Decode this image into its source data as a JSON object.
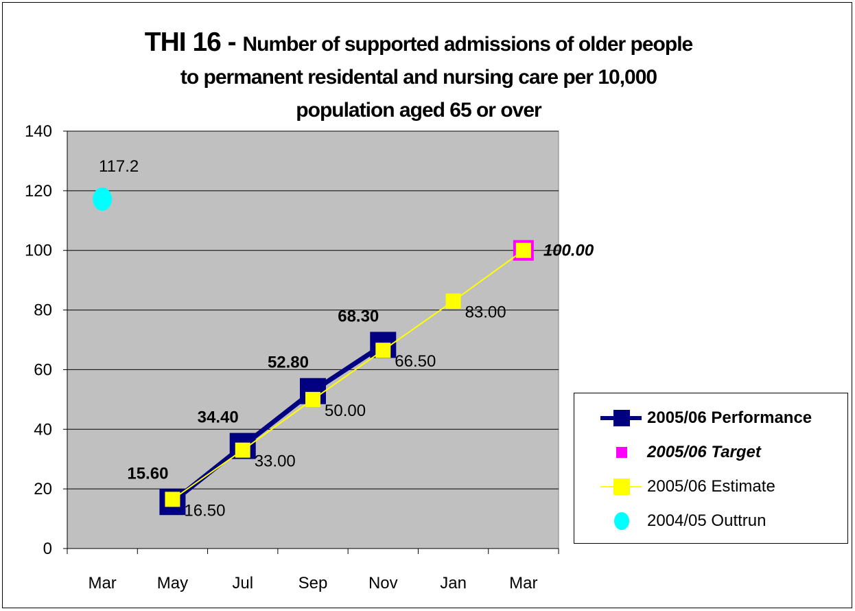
{
  "chart_data": {
    "type": "line",
    "title_line1_prefix": "THI 16 - ",
    "title_line1_rest": "Number of supported admissions of older people",
    "title_line2": "to permanent residental and nursing care per 10,000",
    "title_line3": "population aged 65 or over",
    "categories": [
      "Mar",
      "May",
      "Jul",
      "Sep",
      "Nov",
      "Jan",
      "Mar"
    ],
    "ylim": [
      0,
      140
    ],
    "yticks": [
      0,
      20,
      40,
      60,
      80,
      100,
      120,
      140
    ],
    "ytick_labels": [
      "0",
      "20",
      "40",
      "60",
      "80",
      "100",
      "120",
      "140"
    ],
    "grid": true,
    "plot_background": "#C0C0C0",
    "legend_position": "right",
    "series": [
      {
        "name": "2005/06 Performance",
        "color": "#000080",
        "marker": "square",
        "values": [
          null,
          15.6,
          34.4,
          52.8,
          68.3,
          null,
          null
        ],
        "labels": [
          null,
          "15.60",
          "34.40",
          "52.80",
          "68.30",
          null,
          null
        ]
      },
      {
        "name": "2005/06 Target",
        "color": "#FF00FF",
        "marker": "square",
        "values": [
          null,
          null,
          null,
          null,
          null,
          null,
          100.0
        ],
        "labels": [
          null,
          null,
          null,
          null,
          null,
          null,
          "100.00"
        ]
      },
      {
        "name": "2005/06 Estimate",
        "color": "#FFFF00",
        "marker": "square",
        "values": [
          null,
          16.5,
          33.0,
          50.0,
          66.5,
          83.0,
          100.0
        ],
        "labels": [
          null,
          "16.50",
          "33.00",
          "50.00",
          "66.50",
          "83.00",
          null
        ]
      },
      {
        "name": "2004/05 Outtrun",
        "color": "#00FFFF",
        "marker": "circle",
        "values": [
          117.2,
          null,
          null,
          null,
          null,
          null,
          null
        ],
        "labels": [
          "117.2",
          null,
          null,
          null,
          null,
          null,
          null
        ]
      }
    ]
  }
}
